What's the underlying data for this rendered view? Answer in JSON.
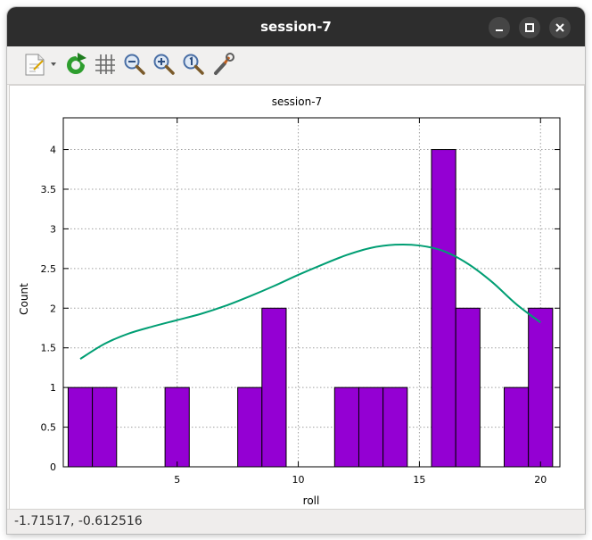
{
  "window": {
    "title": "session-7"
  },
  "toolbar": {
    "items": [
      "export-menu",
      "replot",
      "grid-toggle",
      "zoom-out",
      "zoom-in",
      "zoom-reset",
      "settings"
    ]
  },
  "status": {
    "coords": "-1.71517, -0.612516"
  },
  "chart_data": {
    "type": "bar",
    "title": "session-7",
    "xlabel": "roll",
    "ylabel": "Count",
    "xlim": [
      0.3,
      20.8
    ],
    "ylim": [
      0,
      4.4
    ],
    "grid": true,
    "xticks": [
      5,
      10,
      15,
      20
    ],
    "yticks": [
      0,
      0.5,
      1,
      1.5,
      2,
      2.5,
      3,
      3.5,
      4
    ],
    "xtick_labels": [
      "5",
      "10",
      "15",
      "20"
    ],
    "ytick_labels": [
      "0",
      "0.5",
      "1",
      "1.5",
      "2",
      "2.5",
      "3",
      "3.5",
      "4"
    ],
    "bar_width": 1,
    "bar_color": "#9400d3",
    "bars": [
      {
        "x": 1,
        "count": 1
      },
      {
        "x": 2,
        "count": 1
      },
      {
        "x": 5,
        "count": 1
      },
      {
        "x": 8,
        "count": 1
      },
      {
        "x": 9,
        "count": 2
      },
      {
        "x": 12,
        "count": 1
      },
      {
        "x": 13,
        "count": 1
      },
      {
        "x": 14,
        "count": 1
      },
      {
        "x": 16,
        "count": 4
      },
      {
        "x": 17,
        "count": 2
      },
      {
        "x": 19,
        "count": 1
      },
      {
        "x": 20,
        "count": 2
      }
    ],
    "curve_color": "#009e73",
    "curve": {
      "x": [
        1,
        2,
        3,
        4,
        5,
        6,
        7,
        8,
        9,
        10,
        11,
        12,
        13,
        14,
        15,
        16,
        17,
        18,
        19,
        20
      ],
      "y": [
        1.36,
        1.55,
        1.68,
        1.77,
        1.85,
        1.93,
        2.03,
        2.15,
        2.28,
        2.42,
        2.55,
        2.67,
        2.76,
        2.8,
        2.79,
        2.72,
        2.56,
        2.33,
        2.05,
        1.82
      ]
    }
  }
}
